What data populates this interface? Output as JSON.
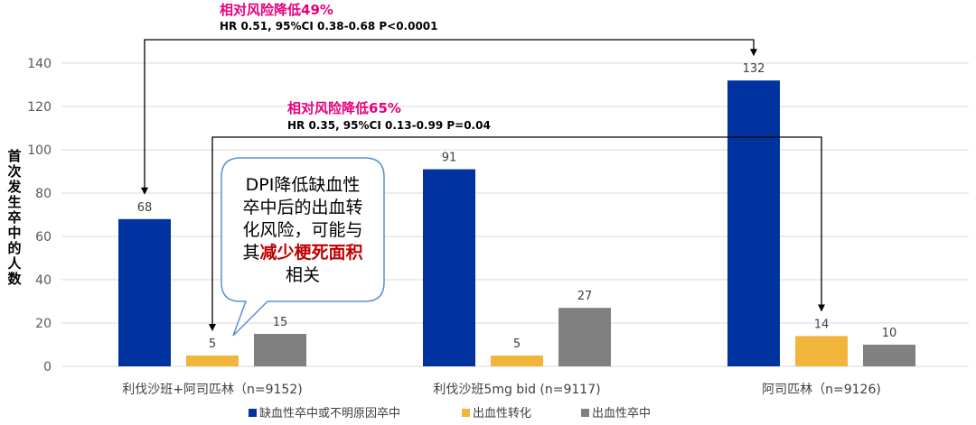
{
  "chart_data": {
    "type": "bar",
    "ylabel": "首次发生卒中的人数",
    "ylim": [
      0,
      140
    ],
    "yticks": [
      0,
      20,
      40,
      60,
      80,
      100,
      120,
      140
    ],
    "grid": true,
    "legend_position": "bottom",
    "categories": [
      "利伐沙班+阿司匹林（n=9152)",
      "利伐沙班5mg bid (n=9117)",
      "阿司匹林（n=9126)"
    ],
    "series": [
      {
        "name": "缺血性卒中或不明原因卒中",
        "color": "#0033a0",
        "values": [
          68,
          91,
          132
        ]
      },
      {
        "name": "出血性转化",
        "color": "#f2b53c",
        "values": [
          5,
          5,
          14
        ]
      },
      {
        "name": "出血性卒中",
        "color": "#808080",
        "values": [
          15,
          27,
          10
        ]
      }
    ],
    "annotations": [
      {
        "title": "相对风险降低49%",
        "stats": "HR 0.51, 95%CI 0.38-0.68 P<0.0001",
        "from": [
          0,
          0
        ],
        "to": [
          2,
          0
        ]
      },
      {
        "title": "相对风险降低65%",
        "stats": "HR 0.35, 95%CI 0.13-0.99 P=0.04",
        "from": [
          0,
          1
        ],
        "to": [
          2,
          1
        ]
      }
    ],
    "callout": {
      "lines": [
        "DPI降低缺血性",
        "卒中后的出血转",
        "化风险，可能与"
      ],
      "line4_prefix": "其",
      "line4_highlight": "减少梗死面积",
      "line5": "相关"
    }
  }
}
